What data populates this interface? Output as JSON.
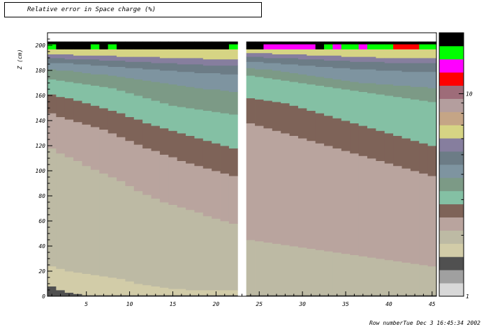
{
  "title": "Relative error in Space charge (%)",
  "footer": "Row numberTue Dec  3 16:45:34 2002",
  "chart_data": {
    "type": "heatmap",
    "title": "Relative error in Space charge (%)",
    "xlabel": "Row number",
    "ylabel": "Z (cm)",
    "xlim": [
      0.5,
      45.5
    ],
    "ylim": [
      0,
      210
    ],
    "x_ticks": [
      5,
      10,
      15,
      20,
      25,
      30,
      35,
      40,
      45
    ],
    "y_ticks": [
      0,
      20,
      40,
      60,
      80,
      100,
      120,
      140,
      160,
      180,
      200
    ],
    "x_tick_labels": [
      "5",
      "10",
      "15",
      "20",
      "25",
      "30",
      "35",
      "40",
      "45"
    ],
    "y_tick_labels": [
      "0",
      "20",
      "40",
      "60",
      "80",
      "100",
      "120",
      "140",
      "160",
      "180",
      "200"
    ],
    "color_axis": {
      "scale": "log",
      "range": [
        1,
        20
      ],
      "tick_labels": [
        "1",
        "10"
      ],
      "colors": [
        "#d8d8d8",
        "#a0a0a0",
        "#505050",
        "#d2cca8",
        "#bdbaa4",
        "#b9a49e",
        "#7e6358",
        "#84c0a4",
        "#7c9a86",
        "#7e94a0",
        "#6c7c86",
        "#867e9e",
        "#d6d484",
        "#c5a586",
        "#b49e9e",
        "#9e6c79",
        "#ff0000",
        "#ff00ff",
        "#00ff00",
        "#000000"
      ]
    },
    "empty_rows": [
      23
    ],
    "rows_1_22_boundaries": [
      [
        8,
        5,
        3,
        2,
        1,
        1,
        1,
        1,
        1,
        1,
        1,
        1,
        1,
        1,
        1,
        1,
        1,
        1,
        1,
        1,
        1,
        1
      ],
      [
        8,
        5,
        3,
        2,
        1,
        1,
        1,
        1,
        1,
        1,
        1,
        1,
        1,
        1,
        1,
        1,
        1,
        1,
        1,
        1,
        1,
        1
      ],
      [
        24,
        22,
        20,
        19,
        18,
        17,
        16,
        15,
        14,
        12,
        10,
        9,
        8,
        7,
        6,
        6,
        5,
        5,
        5,
        5,
        5,
        5
      ],
      [
        118,
        114,
        111,
        108,
        104,
        101,
        98,
        95,
        92,
        88,
        84,
        81,
        78,
        75,
        73,
        71,
        69,
        67,
        64,
        62,
        60,
        58
      ],
      [
        146,
        143,
        141,
        139,
        137,
        135,
        133,
        130,
        127,
        124,
        121,
        118,
        116,
        113,
        111,
        108,
        106,
        104,
        102,
        100,
        98,
        96
      ],
      [
        161,
        159,
        158,
        156,
        154,
        152,
        150,
        148,
        146,
        143,
        141,
        138,
        136,
        134,
        132,
        130,
        128,
        126,
        124,
        122,
        120,
        118
      ],
      [
        173,
        172,
        171,
        170,
        169,
        168,
        167,
        166,
        164,
        162,
        160,
        158,
        156,
        154,
        152,
        151,
        150,
        149,
        148,
        147,
        146,
        145
      ],
      [
        181,
        180,
        180,
        179,
        178,
        177,
        177,
        176,
        175,
        174,
        173,
        172,
        171,
        170,
        169,
        168,
        167,
        166,
        165,
        165,
        164,
        163
      ],
      [
        186,
        186,
        186,
        185,
        185,
        184,
        184,
        183,
        183,
        182,
        182,
        181,
        181,
        180,
        180,
        179,
        179,
        178,
        178,
        178,
        177,
        177
      ],
      [
        190,
        190,
        189,
        189,
        189,
        189,
        188,
        188,
        188,
        187,
        187,
        187,
        186,
        186,
        186,
        185,
        185,
        185,
        184,
        184,
        184,
        184
      ],
      [
        193,
        193,
        193,
        192,
        192,
        192,
        192,
        192,
        191,
        191,
        191,
        191,
        191,
        190,
        190,
        190,
        190,
        190,
        189,
        189,
        189,
        189
      ],
      [
        197,
        197,
        197,
        197,
        197,
        197,
        197,
        197,
        197,
        197,
        197,
        197,
        197,
        197,
        197,
        197,
        197,
        197,
        197,
        197,
        197,
        197
      ]
    ],
    "rows_1_22_top_colors": [
      "#00ff00",
      "#000000",
      "#000000",
      "#000000",
      "#000000",
      "#00ff00",
      "#000000",
      "#00ff00",
      "#000000",
      "#000000",
      "#000000",
      "#000000",
      "#000000",
      "#000000",
      "#000000",
      "#000000",
      "#000000",
      "#000000",
      "#000000",
      "#000000",
      "#000000",
      "#00ff00"
    ],
    "rows_24_45_boundaries": [
      [
        1,
        1,
        1,
        1,
        1,
        1,
        1,
        1,
        1,
        1,
        1,
        1,
        1,
        1,
        1,
        1,
        1,
        1,
        1,
        1,
        1,
        1
      ],
      [
        1,
        1,
        1,
        1,
        1,
        1,
        1,
        1,
        1,
        1,
        1,
        1,
        1,
        1,
        1,
        1,
        1,
        1,
        1,
        1,
        1,
        1
      ],
      [
        1,
        1,
        1,
        1,
        1,
        1,
        1,
        1,
        1,
        1,
        1,
        1,
        1,
        1,
        1,
        1,
        1,
        1,
        1,
        1,
        1,
        1
      ],
      [
        45,
        44,
        43,
        42,
        41,
        40,
        39,
        38,
        37,
        36,
        35,
        34,
        33,
        32,
        31,
        30,
        29,
        28,
        27,
        26,
        25,
        24
      ],
      [
        138,
        136,
        134,
        132,
        130,
        128,
        126,
        124,
        122,
        120,
        118,
        116,
        114,
        112,
        110,
        108,
        106,
        104,
        102,
        100,
        98,
        96
      ],
      [
        158,
        157,
        156,
        155,
        154,
        152,
        150,
        148,
        146,
        144,
        142,
        140,
        138,
        136,
        134,
        132,
        130,
        128,
        126,
        124,
        122,
        120
      ],
      [
        176,
        175,
        174,
        173,
        172,
        171,
        170,
        169,
        168,
        167,
        166,
        165,
        164,
        163,
        162,
        161,
        160,
        159,
        158,
        157,
        156,
        155
      ],
      [
        182,
        181,
        181,
        180,
        179,
        178,
        177,
        176,
        175,
        174,
        173,
        172,
        171,
        170,
        170,
        169,
        169,
        168,
        168,
        167,
        167,
        166
      ],
      [
        187,
        187,
        186,
        186,
        185,
        185,
        184,
        184,
        183,
        183,
        182,
        182,
        181,
        181,
        181,
        180,
        180,
        180,
        179,
        179,
        179,
        179
      ],
      [
        191,
        191,
        190,
        190,
        190,
        190,
        189,
        189,
        189,
        188,
        188,
        188,
        187,
        187,
        187,
        187,
        186,
        186,
        186,
        186,
        186,
        186
      ],
      [
        194,
        194,
        194,
        193,
        193,
        193,
        193,
        192,
        192,
        192,
        192,
        191,
        191,
        191,
        191,
        190,
        190,
        190,
        190,
        190,
        190,
        190
      ],
      [
        197,
        197,
        197,
        197,
        197,
        197,
        197,
        197,
        197,
        197,
        197,
        197,
        197,
        197,
        197,
        197,
        197,
        197,
        197,
        197,
        197,
        197
      ]
    ],
    "rows_24_45_top_colors": [
      "#000000",
      "#000000",
      "#ff00ff",
      "#ff00ff",
      "#ff00ff",
      "#ff00ff",
      "#ff00ff",
      "#ff00ff",
      "#000000",
      "#00ff00",
      "#ff00ff",
      "#00ff00",
      "#00ff00",
      "#ff00ff",
      "#00ff00",
      "#00ff00",
      "#00ff00",
      "#ff0000",
      "#ff0000",
      "#ff0000",
      "#00ff00",
      "#00ff00"
    ]
  }
}
